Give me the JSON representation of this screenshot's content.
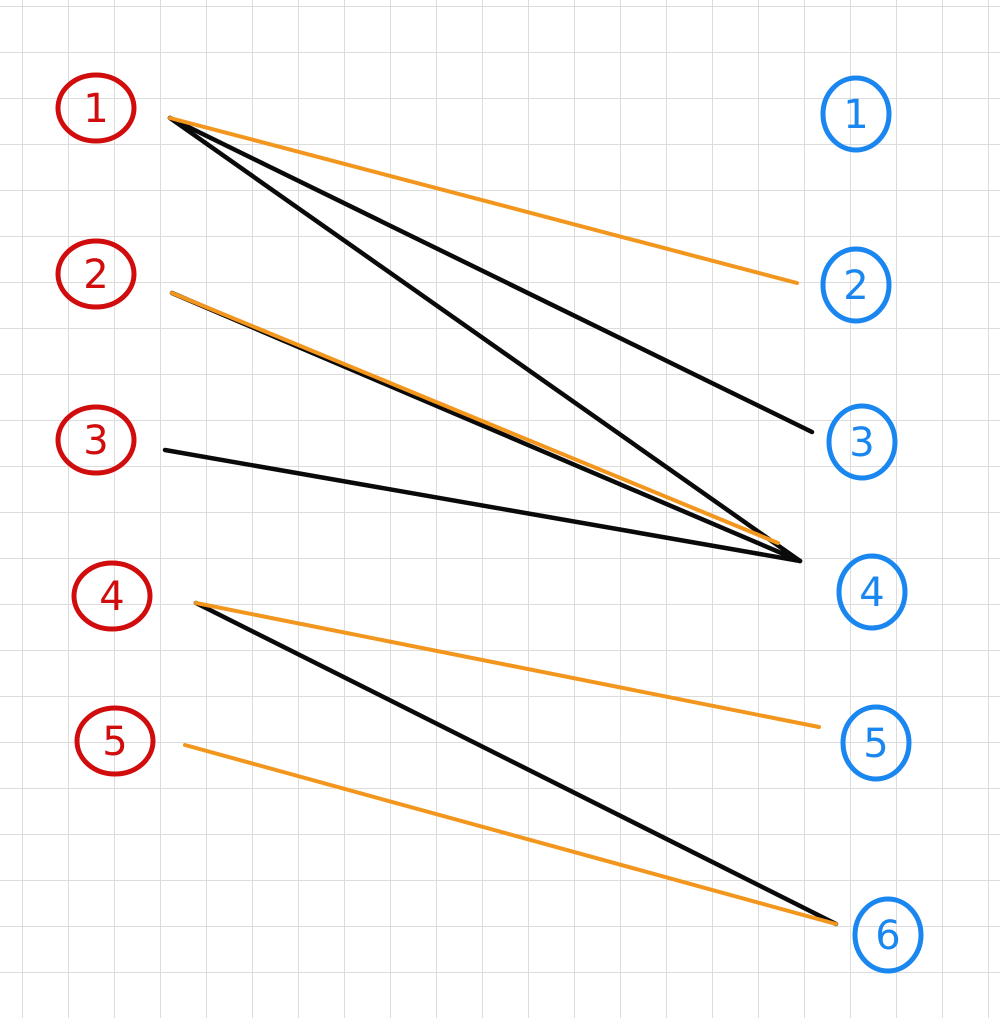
{
  "colors": {
    "left_nodes": "#d10c0c",
    "right_nodes": "#1a86f0",
    "black_edge": "#0a0a0a",
    "orange_edge": "#f2961e",
    "grid": "#dcdcdc"
  },
  "left_nodes": [
    {
      "id": "L1",
      "label": "1"
    },
    {
      "id": "L2",
      "label": "2"
    },
    {
      "id": "L3",
      "label": "3"
    },
    {
      "id": "L4",
      "label": "4"
    },
    {
      "id": "L5",
      "label": "5"
    }
  ],
  "right_nodes": [
    {
      "id": "R1",
      "label": "1"
    },
    {
      "id": "R2",
      "label": "2"
    },
    {
      "id": "R3",
      "label": "3"
    },
    {
      "id": "R4",
      "label": "4"
    },
    {
      "id": "R5",
      "label": "5"
    },
    {
      "id": "R6",
      "label": "6"
    }
  ],
  "edges": [
    {
      "from": "L1",
      "to": "R3",
      "color": "black"
    },
    {
      "from": "L1",
      "to": "R4",
      "color": "black"
    },
    {
      "from": "L2",
      "to": "R4",
      "color": "black"
    },
    {
      "from": "L3",
      "to": "R4",
      "color": "black"
    },
    {
      "from": "L4",
      "to": "R6",
      "color": "black"
    },
    {
      "from": "L1",
      "to": "R2",
      "color": "orange"
    },
    {
      "from": "L2",
      "to": "R4",
      "color": "orange"
    },
    {
      "from": "L4",
      "to": "R5",
      "color": "orange"
    },
    {
      "from": "L5",
      "to": "R6",
      "color": "orange"
    }
  ]
}
